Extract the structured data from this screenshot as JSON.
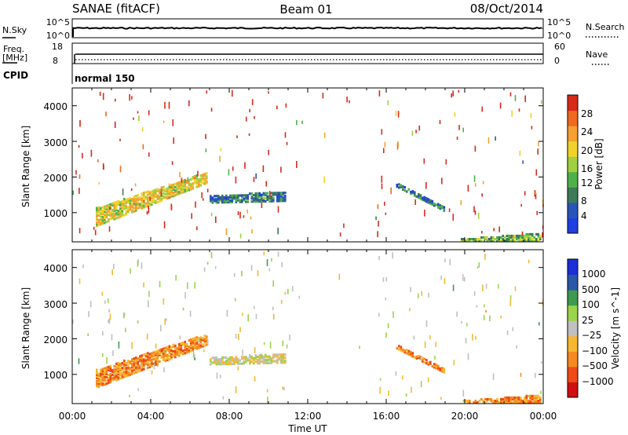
{
  "header": {
    "station": "SANAE (fitACF)",
    "beam": "Beam 01",
    "date": "08/Oct/2014"
  },
  "nsky_panel": {
    "left_label": "N.Sky",
    "right_label": "N.Search",
    "left_ticks": [
      "10^5",
      "10^0"
    ],
    "right_ticks": [
      "10^5",
      "10^0"
    ]
  },
  "freq_panel": {
    "left_label_1": "Freq.",
    "left_label_2": "[MHz]",
    "right_label": "Nave",
    "left_ticks": [
      "18",
      "8"
    ],
    "right_ticks": [
      "60",
      "0"
    ]
  },
  "cpid": {
    "label": "CPID",
    "mode": "normal 150"
  },
  "time_axis": {
    "xlabel": "Time UT",
    "ticks": [
      "00:00",
      "04:00",
      "08:00",
      "12:00",
      "16:00",
      "20:00",
      "00:00"
    ]
  },
  "colors": {
    "power_scale": [
      "#1f3fe0",
      "#2a55b8",
      "#3e7a5a",
      "#4fb04a",
      "#a0d040",
      "#f2d22a",
      "#f5a030",
      "#ef6a20",
      "#d82a1a"
    ],
    "velocity_scale": [
      "#d01010",
      "#ef4a18",
      "#f58a20",
      "#f7b830",
      "#c0c0c0",
      "#9ad44a",
      "#3e9a50",
      "#2a58a8",
      "#1a2fd8"
    ]
  },
  "chart_data": [
    {
      "type": "heatmap",
      "title": "",
      "xlabel": "Time UT",
      "ylabel": "Slant Range [km]",
      "xlim": [
        0,
        24
      ],
      "ylim": [
        180,
        4500
      ],
      "yticks": [
        "1000",
        "2000",
        "3000",
        "4000"
      ],
      "colorbar_label": "Power [dB]",
      "colorbar_ticks": [
        "4",
        "8",
        "12",
        "16",
        "20",
        "24",
        "28"
      ],
      "colorbar_range": [
        0,
        30
      ],
      "regions": [
        {
          "t": [
            1.2,
            6.8
          ],
          "r_start": [
            600,
            1800
          ],
          "r_end": [
            1100,
            2100
          ],
          "value": 18
        },
        {
          "t": [
            7.0,
            10.8
          ],
          "r_start": [
            1250,
            1300
          ],
          "r_end": [
            1450,
            1550
          ],
          "value": 7
        },
        {
          "t": [
            16.5,
            19.0
          ],
          "r_start": [
            1700,
            1000
          ],
          "r_end": [
            1800,
            1100
          ],
          "value": 6
        },
        {
          "t": [
            19.8,
            23.9
          ],
          "r_start": [
            180,
            180
          ],
          "r_end": [
            230,
            400
          ],
          "value": 12
        }
      ]
    },
    {
      "type": "heatmap",
      "title": "",
      "xlabel": "Time UT",
      "ylabel": "Slant Range [km]",
      "xlim": [
        0,
        24
      ],
      "ylim": [
        180,
        4500
      ],
      "yticks": [
        "1000",
        "2000",
        "3000",
        "4000"
      ],
      "colorbar_label": "Velocity [m s^-1]",
      "colorbar_ticks": [
        "1000",
        "500",
        "100",
        "25",
        "−25",
        "−100",
        "−500",
        "−1000"
      ],
      "regions": [
        {
          "t": [
            1.2,
            6.8
          ],
          "r_start": [
            600,
            1800
          ],
          "r_end": [
            1100,
            2100
          ],
          "value": -100
        },
        {
          "t": [
            7.0,
            10.8
          ],
          "r_start": [
            1250,
            1300
          ],
          "r_end": [
            1450,
            1550
          ],
          "value": 25
        },
        {
          "t": [
            16.5,
            19.0
          ],
          "r_start": [
            1700,
            1000
          ],
          "r_end": [
            1800,
            1100
          ],
          "value": -100
        },
        {
          "t": [
            19.8,
            23.9
          ],
          "r_start": [
            180,
            180
          ],
          "r_end": [
            230,
            400
          ],
          "value": -100
        }
      ]
    }
  ]
}
